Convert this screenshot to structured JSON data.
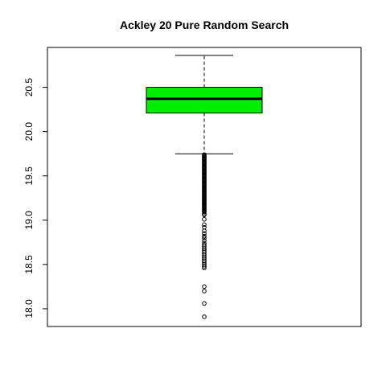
{
  "chart_data": {
    "type": "box",
    "title": "Ackley 20 Pure Random Search",
    "xlabel": "",
    "ylabel": "",
    "ylim": [
      17.8,
      20.95
    ],
    "yticks": [
      18.0,
      18.5,
      19.0,
      19.5,
      20.0,
      20.5
    ],
    "ytick_labels": [
      "18.0",
      "18.5",
      "19.0",
      "19.5",
      "20.0",
      "20.5"
    ],
    "box": {
      "whisker_low": 19.75,
      "q1": 20.21,
      "median": 20.37,
      "q3": 20.5,
      "whisker_high": 20.86
    },
    "outliers": [
      19.74,
      19.73,
      19.72,
      19.71,
      19.7,
      19.69,
      19.68,
      19.67,
      19.66,
      19.65,
      19.64,
      19.63,
      19.62,
      19.61,
      19.6,
      19.59,
      19.58,
      19.57,
      19.56,
      19.55,
      19.54,
      19.53,
      19.52,
      19.51,
      19.5,
      19.49,
      19.48,
      19.47,
      19.46,
      19.45,
      19.44,
      19.43,
      19.42,
      19.41,
      19.4,
      19.39,
      19.38,
      19.37,
      19.36,
      19.35,
      19.34,
      19.33,
      19.32,
      19.31,
      19.3,
      19.29,
      19.28,
      19.27,
      19.26,
      19.25,
      19.24,
      19.23,
      19.22,
      19.21,
      19.2,
      19.19,
      19.18,
      19.17,
      19.16,
      19.15,
      19.14,
      19.13,
      19.12,
      19.11,
      19.1,
      19.09,
      19.07,
      19.06,
      19.01,
      18.95,
      18.92,
      18.88,
      18.85,
      18.82,
      18.8,
      18.77,
      18.74,
      18.72,
      18.7,
      18.68,
      18.66,
      18.64,
      18.62,
      18.6,
      18.58,
      18.56,
      18.54,
      18.52,
      18.5,
      18.48,
      18.46,
      18.25,
      18.2,
      18.06,
      17.91
    ],
    "colors": {
      "box_fill": "#00ee00",
      "stroke": "#000000",
      "background": "#ffffff"
    }
  }
}
